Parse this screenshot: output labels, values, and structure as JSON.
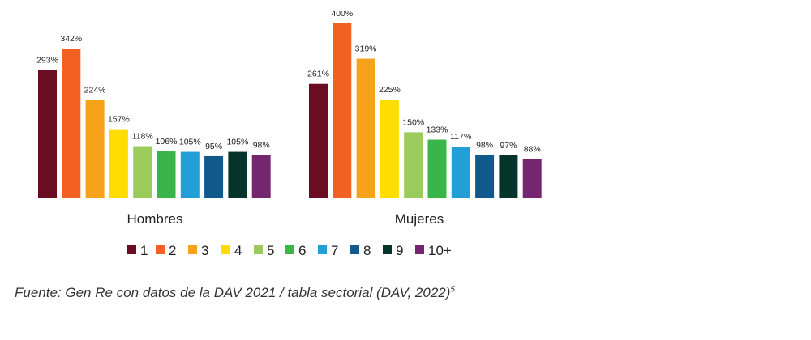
{
  "chart_data": {
    "type": "bar",
    "title": "",
    "xlabel": "",
    "ylabel": "",
    "ylim": [
      0,
      400
    ],
    "grid": false,
    "legend_position": "bottom",
    "groups": [
      "Hombres",
      "Mujeres"
    ],
    "series": [
      {
        "name": "1",
        "color": "#6B0D22",
        "values": [
          293,
          261
        ],
        "labels": [
          "293%",
          "261%"
        ]
      },
      {
        "name": "2",
        "color": "#F26122",
        "values": [
          342,
          400
        ],
        "labels": [
          "342%",
          "400%"
        ]
      },
      {
        "name": "3",
        "color": "#F7A21B",
        "values": [
          224,
          319
        ],
        "labels": [
          "224%",
          "319%"
        ]
      },
      {
        "name": "4",
        "color": "#FFDD00",
        "values": [
          157,
          225
        ],
        "labels": [
          "157%",
          "225%"
        ]
      },
      {
        "name": "5",
        "color": "#9BCB5A",
        "values": [
          118,
          150
        ],
        "labels": [
          "118%",
          "150%"
        ]
      },
      {
        "name": "6",
        "color": "#3AB54A",
        "values": [
          106,
          133
        ],
        "labels": [
          "106%",
          "133%"
        ]
      },
      {
        "name": "7",
        "color": "#219FD6",
        "values": [
          105,
          117
        ],
        "labels": [
          "105%",
          "117%"
        ]
      },
      {
        "name": "8",
        "color": "#0F5A8A",
        "values": [
          95,
          98
        ],
        "labels": [
          "95%",
          "98%"
        ]
      },
      {
        "name": "9",
        "color": "#05342A",
        "values": [
          105,
          97
        ],
        "labels": [
          "105%",
          "97%"
        ]
      },
      {
        "name": "10+",
        "color": "#74276F",
        "values": [
          98,
          88
        ],
        "labels": [
          "98%",
          "88%"
        ]
      }
    ]
  },
  "footnote": {
    "text": "Fuente: Gen Re con datos de la DAV 2021 / tabla sectorial (DAV, 2022)",
    "sup": "5"
  }
}
